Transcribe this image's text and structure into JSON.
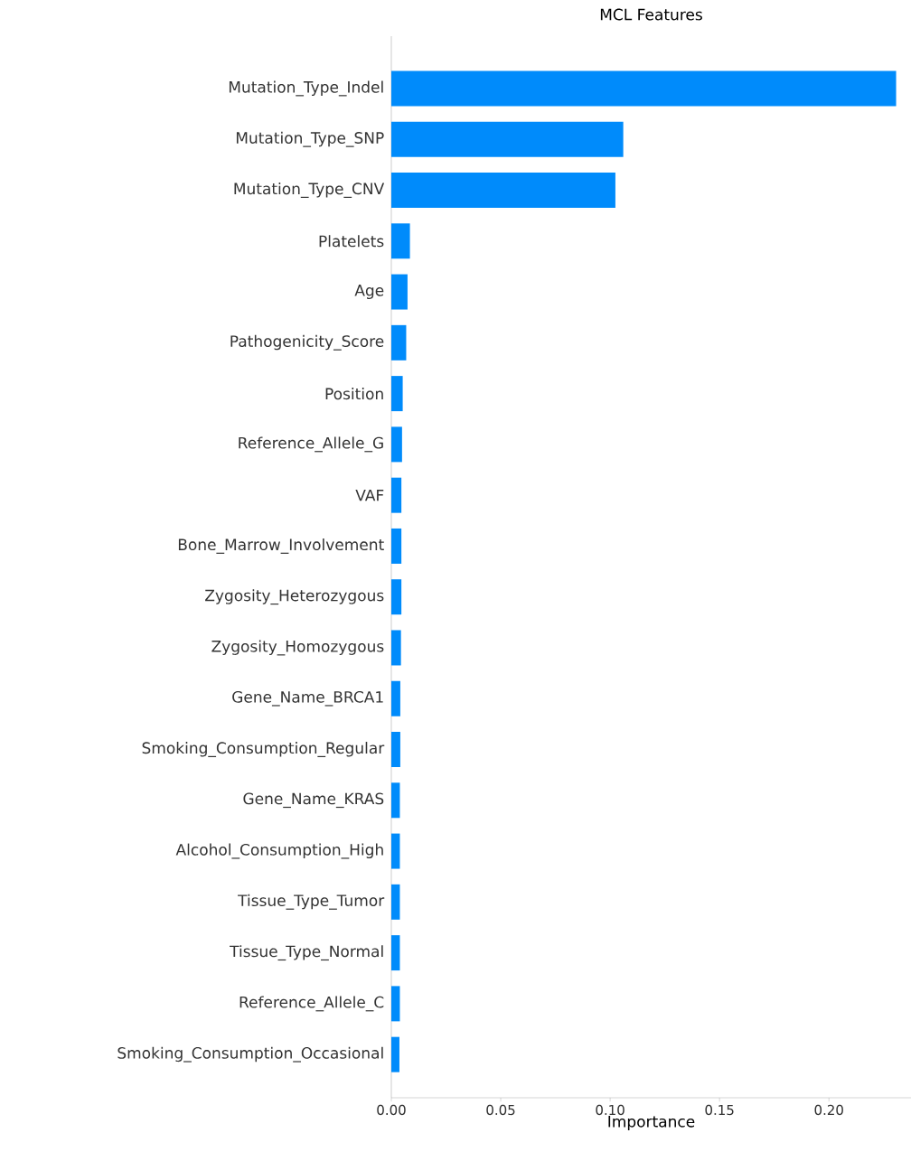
{
  "chart_data": {
    "type": "bar",
    "orientation": "horizontal",
    "title": "MCL Features",
    "xlabel": "Importance",
    "categories": [
      "Mutation_Type_Indel",
      "Mutation_Type_SNP",
      "Mutation_Type_CNV",
      "Platelets",
      "Age",
      "Pathogenicity_Score",
      "Position",
      "Reference_Allele_G",
      "VAF",
      "Bone_Marrow_Involvement",
      "Zygosity_Heterozygous",
      "Zygosity_Homozygous",
      "Gene_Name_BRCA1",
      "Smoking_Consumption_Regular",
      "Gene_Name_KRAS",
      "Alcohol_Consumption_High",
      "Tissue_Type_Tumor",
      "Tissue_Type_Normal",
      "Reference_Allele_C",
      "Smoking_Consumption_Occasional"
    ],
    "values": [
      0.2307,
      0.106,
      0.1024,
      0.0085,
      0.0074,
      0.0068,
      0.0052,
      0.0049,
      0.0046,
      0.0046,
      0.0046,
      0.0044,
      0.0041,
      0.0041,
      0.0039,
      0.0039,
      0.0039,
      0.0039,
      0.0039,
      0.0037
    ],
    "color": "#008bfb",
    "xlim": [
      0,
      0.2375
    ],
    "xticks": [
      {
        "value": 0,
        "label": "0.00"
      },
      {
        "value": 0.05,
        "label": "0.05"
      },
      {
        "value": 0.1,
        "label": "0.10"
      },
      {
        "value": 0.15,
        "label": "0.15"
      },
      {
        "value": 0.2,
        "label": "0.20"
      }
    ]
  }
}
